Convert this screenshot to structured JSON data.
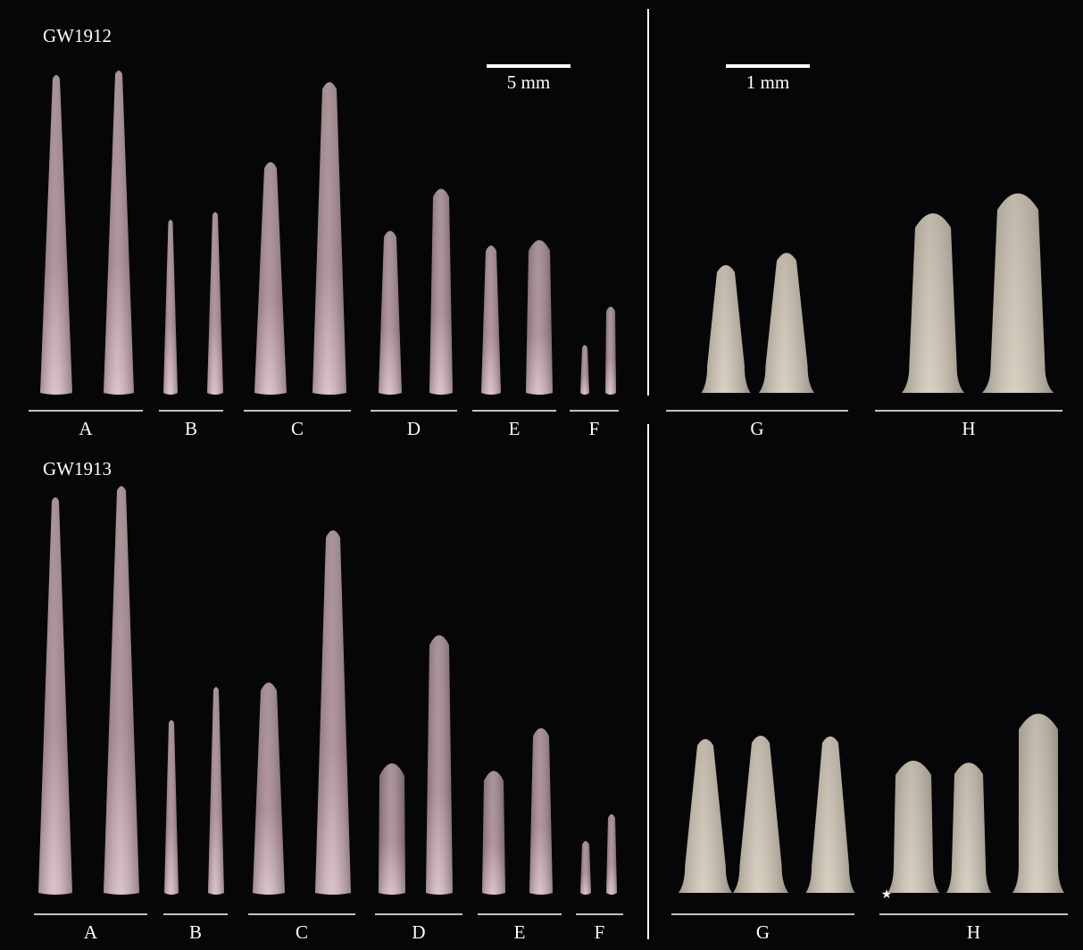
{
  "panels": [
    {
      "specimen": "GW1912",
      "groups": [
        "A",
        "B",
        "C",
        "D",
        "E",
        "F",
        "G",
        "H"
      ]
    },
    {
      "specimen": "GW1913",
      "groups": [
        "A",
        "B",
        "C",
        "D",
        "E",
        "F",
        "G",
        "H"
      ]
    }
  ],
  "scale_bars": [
    "5 mm",
    "1 mm"
  ],
  "marker": "★"
}
